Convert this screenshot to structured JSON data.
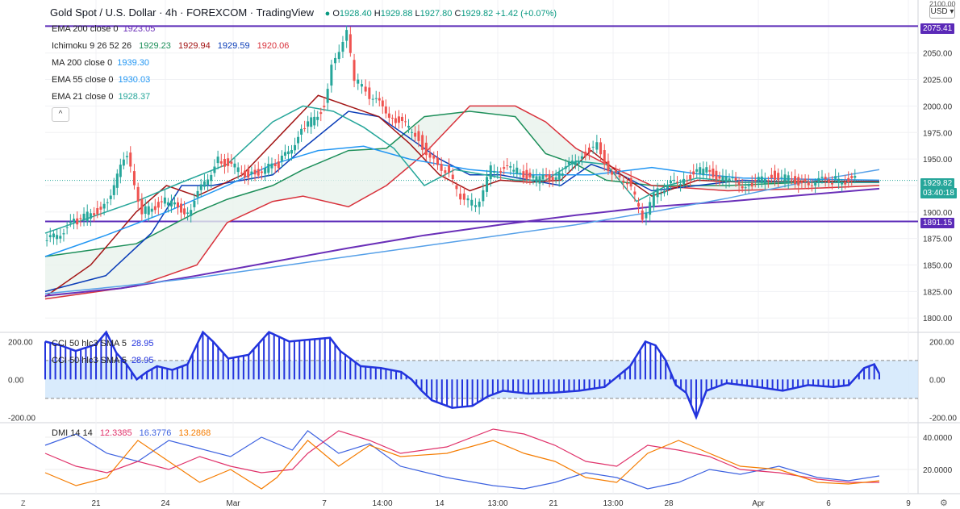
{
  "header": {
    "title": "Gold Spot / U.S. Dollar · 4h · FOREXCOM · TradingView",
    "status_dot_color": "#089981",
    "o_label": "O",
    "o": "1928.40",
    "h_label": "H",
    "h": "1929.88",
    "l_label": "L",
    "l": "1927.80",
    "c_label": "C",
    "c": "1929.82",
    "change": "+1.42 (+0.07%)"
  },
  "legends": {
    "ema200": {
      "name": "EMA 200 close 0",
      "value": "1923.05"
    },
    "ichimoku": {
      "name": "Ichimoku 9 26 52 26",
      "v1": "1929.23",
      "v2": "1929.94",
      "v3": "1929.59",
      "v4": "1920.06"
    },
    "ma200": {
      "name": "MA 200 close 0",
      "value": "1939.30"
    },
    "ema55": {
      "name": "EMA 55 close 0",
      "value": "1930.03"
    },
    "ema21": {
      "name": "EMA 21 close 0",
      "value": "1928.37"
    },
    "collapse": "^",
    "cci1": {
      "name": "CCI 50 hlc3 SMA 5",
      "value": "28.95"
    },
    "cci2": {
      "name": "CCI 50 hlc3 SMA 5",
      "value": "28.95"
    },
    "dmi": {
      "name": "DMI 14 14",
      "v1": "12.3385",
      "v2": "16.3776",
      "v3": "13.2868"
    }
  },
  "currency": "USD",
  "top_tick": "2100.00",
  "price_tags": {
    "resistance": "2075.41",
    "support": "1891.15",
    "last": "1929.82",
    "countdown": "03:40:18"
  },
  "colors": {
    "up": "#26a69a",
    "down": "#ef5350",
    "ema200": "#6a2fb8",
    "ema55": "#2196f3",
    "ema21": "#26a69a",
    "ma200": "#56a0e8",
    "tenkan": "#a31515",
    "kijun": "#0a3db8",
    "spanA": "#1d8f5a",
    "spanB": "#d8313b",
    "hline": "#5b2ab8",
    "cci": "#2233dd",
    "dmi_plus": "#3d62e0",
    "dmi_minus": "#e0326a",
    "adx": "#f57c00"
  },
  "chart_data": [
    {
      "type": "line",
      "title": "Gold Spot / U.S. Dollar · 4h · FOREXCOM",
      "y_ticks": [
        2050,
        2025,
        2000,
        1975,
        1950,
        1925,
        1900,
        1875,
        1850,
        1825,
        1800
      ],
      "y_tick_labels": [
        "2050.00",
        "2025.00",
        "2000.00",
        "1975.00",
        "1950.00",
        "1925.00",
        "1900.00",
        "1875.00",
        "1850.00",
        "1825.00",
        "1800.00"
      ],
      "ylim": [
        1788,
        2100
      ],
      "x_labels": [
        "21",
        "24",
        "Mar",
        "7",
        "14:00",
        "14",
        "13:00",
        "21",
        "13:00",
        "28",
        "Apr",
        "6",
        "9"
      ],
      "horizontal_lines": [
        2075.41,
        1891.15
      ],
      "series": [
        {
          "name": "EMA 200",
          "points": [
            [
              0,
              1821
            ],
            [
              10,
              1828
            ],
            [
              20,
              1840
            ],
            [
              30,
              1853
            ],
            [
              40,
              1866
            ],
            [
              50,
              1878
            ],
            [
              60,
              1888
            ],
            [
              70,
              1897
            ],
            [
              80,
              1905
            ],
            [
              90,
              1910
            ],
            [
              100,
              1916
            ],
            [
              110,
              1922
            ]
          ]
        },
        {
          "name": "MA 200",
          "points": [
            [
              0,
              1823
            ],
            [
              10,
              1830
            ],
            [
              20,
              1838
            ],
            [
              30,
              1848
            ],
            [
              40,
              1858
            ],
            [
              50,
              1868
            ],
            [
              60,
              1878
            ],
            [
              70,
              1888
            ],
            [
              80,
              1900
            ],
            [
              90,
              1913
            ],
            [
              100,
              1928
            ],
            [
              110,
              1940
            ]
          ]
        },
        {
          "name": "EMA 55",
          "points": [
            [
              0,
              1858
            ],
            [
              8,
              1878
            ],
            [
              16,
              1900
            ],
            [
              24,
              1925
            ],
            [
              30,
              1945
            ],
            [
              36,
              1958
            ],
            [
              42,
              1962
            ],
            [
              48,
              1950
            ],
            [
              56,
              1940
            ],
            [
              64,
              1935
            ],
            [
              72,
              1935
            ],
            [
              80,
              1942
            ],
            [
              86,
              1936
            ],
            [
              92,
              1932
            ],
            [
              100,
              1931
            ],
            [
              110,
              1930
            ]
          ]
        },
        {
          "name": "EMA 21",
          "points": [
            [
              0,
              1880
            ],
            [
              6,
              1895
            ],
            [
              12,
              1910
            ],
            [
              18,
              1928
            ],
            [
              24,
              1945
            ],
            [
              30,
              1985
            ],
            [
              34,
              2000
            ],
            [
              38,
              1995
            ],
            [
              42,
              1980
            ],
            [
              46,
              1960
            ],
            [
              50,
              1925
            ],
            [
              54,
              1940
            ],
            [
              58,
              1935
            ],
            [
              62,
              1930
            ],
            [
              66,
              1930
            ],
            [
              70,
              1948
            ],
            [
              74,
              1945
            ],
            [
              78,
              1910
            ],
            [
              82,
              1925
            ],
            [
              86,
              1932
            ],
            [
              92,
              1928
            ],
            [
              100,
              1928
            ],
            [
              110,
              1928
            ]
          ]
        },
        {
          "name": "Close",
          "points": [
            [
              0,
              1870
            ],
            [
              4,
              1890
            ],
            [
              8,
              1905
            ],
            [
              11,
              1955
            ],
            [
              13,
              1900
            ],
            [
              16,
              1910
            ],
            [
              19,
              1900
            ],
            [
              23,
              1950
            ],
            [
              27,
              1935
            ],
            [
              31,
              1945
            ],
            [
              34,
              1975
            ],
            [
              37,
              2000
            ],
            [
              38,
              2040
            ],
            [
              40,
              2070
            ],
            [
              41,
              2025
            ],
            [
              43,
              2010
            ],
            [
              46,
              1990
            ],
            [
              49,
              1975
            ],
            [
              51,
              1950
            ],
            [
              53,
              1940
            ],
            [
              55,
              1915
            ],
            [
              57,
              1905
            ],
            [
              59,
              1940
            ],
            [
              62,
              1940
            ],
            [
              65,
              1930
            ],
            [
              68,
              1935
            ],
            [
              71,
              1955
            ],
            [
              73,
              1962
            ],
            [
              75,
              1935
            ],
            [
              77,
              1930
            ],
            [
              79,
              1895
            ],
            [
              81,
              1920
            ],
            [
              84,
              1930
            ],
            [
              87,
              1940
            ],
            [
              90,
              1930
            ],
            [
              93,
              1925
            ],
            [
              96,
              1935
            ],
            [
              100,
              1928
            ],
            [
              104,
              1930
            ],
            [
              107,
              1930
            ]
          ]
        }
      ]
    },
    {
      "type": "bar",
      "title": "CCI 50 hlc3 SMA 5",
      "y_ticks": [
        200,
        0,
        -200
      ],
      "y_tick_labels": [
        "200.00",
        "0.00",
        "-200.00"
      ],
      "ylim": [
        -220,
        240
      ],
      "band": [
        100,
        -100
      ],
      "points": [
        [
          0,
          200
        ],
        [
          3,
          180
        ],
        [
          6,
          150
        ],
        [
          10,
          185
        ],
        [
          12,
          250
        ],
        [
          14,
          140
        ],
        [
          16,
          80
        ],
        [
          18,
          0
        ],
        [
          20,
          40
        ],
        [
          22,
          70
        ],
        [
          25,
          50
        ],
        [
          28,
          80
        ],
        [
          31,
          250
        ],
        [
          33,
          200
        ],
        [
          36,
          110
        ],
        [
          40,
          130
        ],
        [
          44,
          250
        ],
        [
          48,
          200
        ],
        [
          52,
          210
        ],
        [
          56,
          220
        ],
        [
          58,
          150
        ],
        [
          62,
          70
        ],
        [
          66,
          60
        ],
        [
          70,
          40
        ],
        [
          72,
          0
        ],
        [
          74,
          -60
        ],
        [
          76,
          -110
        ],
        [
          80,
          -150
        ],
        [
          84,
          -140
        ],
        [
          87,
          -90
        ],
        [
          90,
          -60
        ],
        [
          95,
          -75
        ],
        [
          100,
          -70
        ],
        [
          105,
          -60
        ],
        [
          110,
          -40
        ],
        [
          115,
          70
        ],
        [
          118,
          200
        ],
        [
          120,
          180
        ],
        [
          122,
          100
        ],
        [
          124,
          -30
        ],
        [
          126,
          -70
        ],
        [
          128,
          -200
        ],
        [
          130,
          -60
        ],
        [
          134,
          -20
        ],
        [
          140,
          -40
        ],
        [
          145,
          -60
        ],
        [
          150,
          -30
        ],
        [
          155,
          -40
        ],
        [
          158,
          -30
        ],
        [
          161,
          60
        ],
        [
          163,
          80
        ],
        [
          164,
          30
        ]
      ]
    },
    {
      "type": "line",
      "title": "DMI 14 14",
      "y_ticks": [
        40,
        20
      ],
      "y_tick_labels": [
        "40.0000",
        "20.0000"
      ],
      "ylim": [
        5,
        48
      ],
      "series": [
        {
          "name": "+DI",
          "points": [
            [
              0,
              35
            ],
            [
              4,
              42
            ],
            [
              8,
              30
            ],
            [
              12,
              25
            ],
            [
              16,
              38
            ],
            [
              20,
              33
            ],
            [
              24,
              28
            ],
            [
              28,
              40
            ],
            [
              32,
              32
            ],
            [
              34,
              44
            ],
            [
              38,
              30
            ],
            [
              42,
              36
            ],
            [
              46,
              22
            ],
            [
              52,
              15
            ],
            [
              58,
              10
            ],
            [
              62,
              8
            ],
            [
              66,
              12
            ],
            [
              70,
              18
            ],
            [
              74,
              15
            ],
            [
              78,
              8
            ],
            [
              82,
              12
            ],
            [
              86,
              20
            ],
            [
              90,
              17
            ],
            [
              95,
              22
            ],
            [
              100,
              15
            ],
            [
              104,
              13
            ],
            [
              108,
              16
            ]
          ]
        },
        {
          "name": "-DI",
          "points": [
            [
              0,
              30
            ],
            [
              4,
              22
            ],
            [
              8,
              18
            ],
            [
              12,
              25
            ],
            [
              16,
              20
            ],
            [
              20,
              28
            ],
            [
              24,
              22
            ],
            [
              28,
              18
            ],
            [
              32,
              20
            ],
            [
              34,
              30
            ],
            [
              38,
              44
            ],
            [
              42,
              38
            ],
            [
              46,
              30
            ],
            [
              52,
              34
            ],
            [
              58,
              45
            ],
            [
              62,
              42
            ],
            [
              66,
              35
            ],
            [
              70,
              25
            ],
            [
              74,
              22
            ],
            [
              78,
              35
            ],
            [
              82,
              32
            ],
            [
              86,
              28
            ],
            [
              90,
              20
            ],
            [
              95,
              18
            ],
            [
              100,
              14
            ],
            [
              104,
              12
            ],
            [
              108,
              12
            ]
          ]
        },
        {
          "name": "ADX",
          "points": [
            [
              0,
              18
            ],
            [
              4,
              10
            ],
            [
              8,
              15
            ],
            [
              12,
              38
            ],
            [
              16,
              25
            ],
            [
              20,
              12
            ],
            [
              24,
              20
            ],
            [
              28,
              8
            ],
            [
              30,
              15
            ],
            [
              34,
              38
            ],
            [
              38,
              22
            ],
            [
              42,
              35
            ],
            [
              46,
              28
            ],
            [
              52,
              30
            ],
            [
              58,
              38
            ],
            [
              62,
              30
            ],
            [
              66,
              25
            ],
            [
              70,
              15
            ],
            [
              74,
              12
            ],
            [
              78,
              30
            ],
            [
              82,
              38
            ],
            [
              86,
              30
            ],
            [
              90,
              22
            ],
            [
              95,
              20
            ],
            [
              100,
              12
            ],
            [
              104,
              11
            ],
            [
              108,
              13
            ]
          ]
        }
      ]
    }
  ]
}
